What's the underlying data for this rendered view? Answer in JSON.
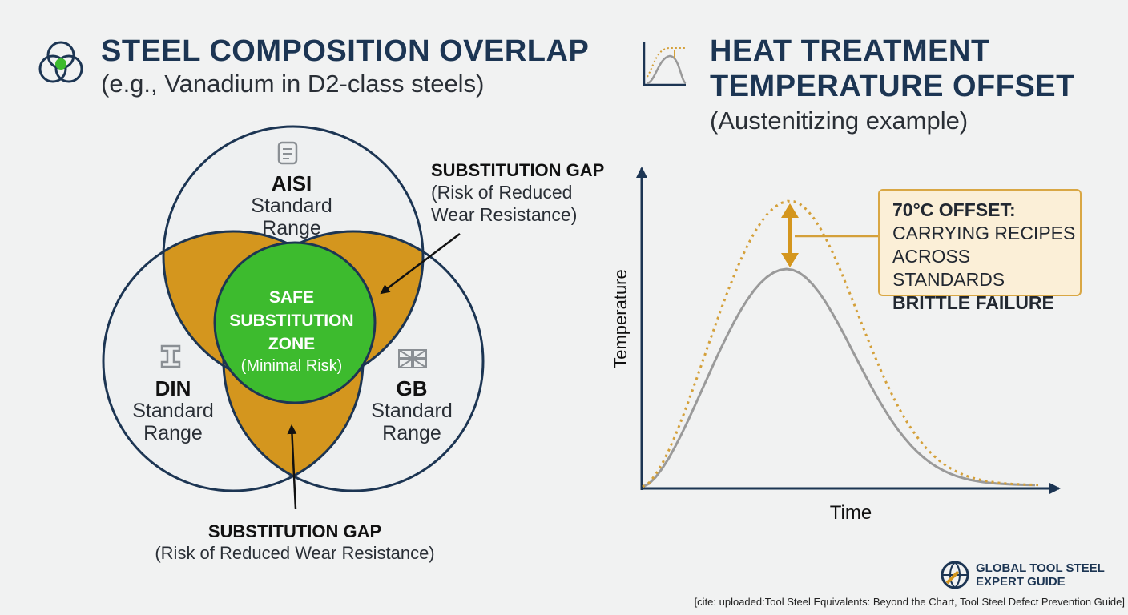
{
  "left_panel": {
    "title": "STEEL COMPOSITION OVERLAP",
    "subtitle": "(e.g., Vanadium in D2-class steels)",
    "icon": "venn-icon",
    "circles": {
      "aisi": {
        "name": "AISI",
        "line1": "Standard",
        "line2": "Range",
        "icon": "document-icon"
      },
      "din": {
        "name": "DIN",
        "line1": "Standard",
        "line2": "Range",
        "icon": "i-beam-icon"
      },
      "gb": {
        "name": "GB",
        "line1": "Standard",
        "line2": "Range",
        "icon": "union-jack-flag-icon"
      }
    },
    "center": {
      "line1": "SAFE",
      "line2": "SUBSTITUTION",
      "line3": "ZONE",
      "line4": "(Minimal Risk)"
    },
    "gap_top": {
      "title": "SUBSTITUTION GAP",
      "line1": "(Risk of Reduced",
      "line2": "Wear Resistance)"
    },
    "gap_bottom": {
      "title": "SUBSTITUTION GAP",
      "line1": "(Risk of Reduced Wear Resistance)"
    },
    "colors": {
      "outline": "#1c3553",
      "gap": "#d4961e",
      "safe": "#3dbb2e",
      "circle_fill": "#eef0f1"
    }
  },
  "right_panel": {
    "title_line1": "HEAT TREATMENT",
    "title_line2": "TEMPERATURE OFFSET",
    "subtitle": "(Austenitizing example)",
    "icon": "heat-curve-icon",
    "callout": {
      "line1": "70°C OFFSET:",
      "line2": "CARRYING RECIPES",
      "line3": "ACROSS STANDARDS",
      "line4": "BRITTLE FAILURE"
    },
    "colors": {
      "axis": "#1c3553",
      "curve_standard": "#9a9a9a",
      "curve_offset": "#d4a03a",
      "callout_bg": "#fbefd7"
    }
  },
  "chart_data": {
    "type": "line",
    "xlabel": "Time",
    "ylabel": "Temperature",
    "offset_label": "70°C OFFSET",
    "series": [
      {
        "values": "bell-shaped curve, lower peak",
        "style": "solid gray"
      },
      {
        "values": "bell-shaped curve, peak offset higher by 70°C",
        "style": "dotted gold"
      }
    ],
    "grid": false
  },
  "footer": {
    "brand_line1": "GLOBAL TOOL STEEL",
    "brand_line2": "EXPERT GUIDE",
    "brand_icon": "globe-wrench-icon",
    "citation": "[cite: uploaded:Tool Steel Equivalents: Beyond the Chart, Tool Steel Defect Prevention Guide]"
  }
}
